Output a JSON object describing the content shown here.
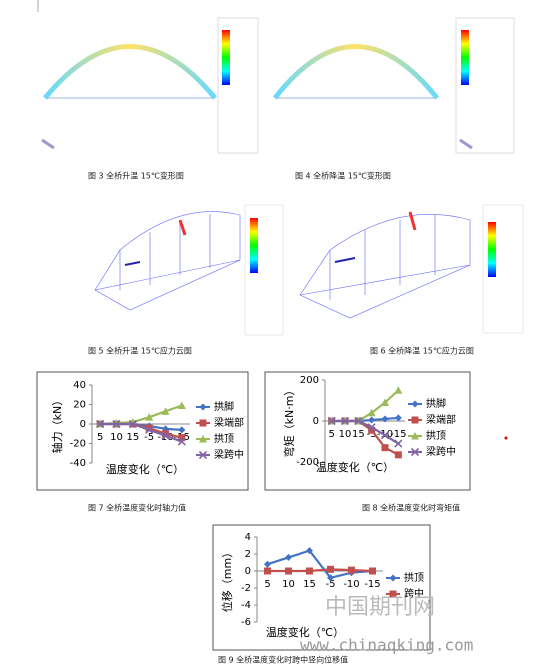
{
  "captions": [
    "图 3 全桥升温 15℃变形图",
    "图 4 全桥降温 15℃变形图",
    "图 5 全桥升温 15℃应力云图",
    "图 6 全桥降温 15℃应力云图",
    "图 7 全桥温度变化时轴力值",
    "图 8 全桥温度变化时弯矩值",
    "图 9 全桥温度变化时跨中竖向位移值"
  ],
  "watermark": "中国期刊网",
  "url": "www.chinaqking.com",
  "chart_data": [
    {
      "type": "line",
      "x_label": "温度变化（℃）",
      "y_label": "轴力（kN）",
      "categories": [
        "5",
        "10",
        "15",
        "-5",
        "-10",
        "-15"
      ],
      "ylim": [
        -40,
        40
      ],
      "yticks": [
        -40,
        -20,
        0,
        20,
        40
      ],
      "series": [
        {
          "name": "拱脚",
          "color": "#4472c4",
          "marker": "diamond",
          "values": [
            0,
            0,
            0,
            -2,
            -5,
            -6
          ]
        },
        {
          "name": "梁端部",
          "color": "#c0504d",
          "marker": "square",
          "values": [
            0,
            0,
            0,
            -4,
            -10,
            -14
          ]
        },
        {
          "name": "拱顶",
          "color": "#9bbb59",
          "marker": "triangle",
          "values": [
            0,
            1,
            2,
            7,
            13,
            19
          ]
        },
        {
          "name": "梁跨中",
          "color": "#8064a2",
          "marker": "x",
          "values": [
            0,
            0,
            0,
            -6,
            -12,
            -18
          ]
        }
      ]
    },
    {
      "type": "line",
      "x_label": "温度变化（℃）",
      "y_label": "弯矩（kN·m）",
      "categories": [
        "5",
        "10",
        "15",
        "-5",
        "-10",
        "-15"
      ],
      "ylim": [
        -200,
        200
      ],
      "yticks": [
        -200,
        0,
        200
      ],
      "series": [
        {
          "name": "拱脚",
          "color": "#4472c4",
          "marker": "diamond",
          "values": [
            0,
            0,
            0,
            5,
            10,
            15
          ]
        },
        {
          "name": "梁端部",
          "color": "#c0504d",
          "marker": "square",
          "values": [
            0,
            0,
            0,
            -45,
            -130,
            -165
          ]
        },
        {
          "name": "拱顶",
          "color": "#9bbb59",
          "marker": "triangle",
          "values": [
            0,
            0,
            0,
            40,
            90,
            150
          ]
        },
        {
          "name": "梁跨中",
          "color": "#8064a2",
          "marker": "x",
          "values": [
            0,
            0,
            0,
            -30,
            -70,
            -110
          ]
        }
      ]
    },
    {
      "type": "line",
      "x_label": "温度变化（℃）",
      "y_label": "位移（mm）",
      "categories": [
        "5",
        "10",
        "15",
        "-5",
        "-10",
        "-15"
      ],
      "ylim": [
        -6,
        4
      ],
      "yticks": [
        -6,
        -4,
        -2,
        0,
        2,
        4
      ],
      "series": [
        {
          "name": "拱顶",
          "color": "#4472c4",
          "marker": "diamond",
          "values": [
            0.8,
            1.6,
            2.4,
            -0.8,
            -0.2,
            0
          ]
        },
        {
          "name": "跨中",
          "color": "#c0504d",
          "marker": "square",
          "values": [
            0,
            0,
            0,
            0.2,
            0.1,
            0
          ]
        }
      ]
    }
  ]
}
